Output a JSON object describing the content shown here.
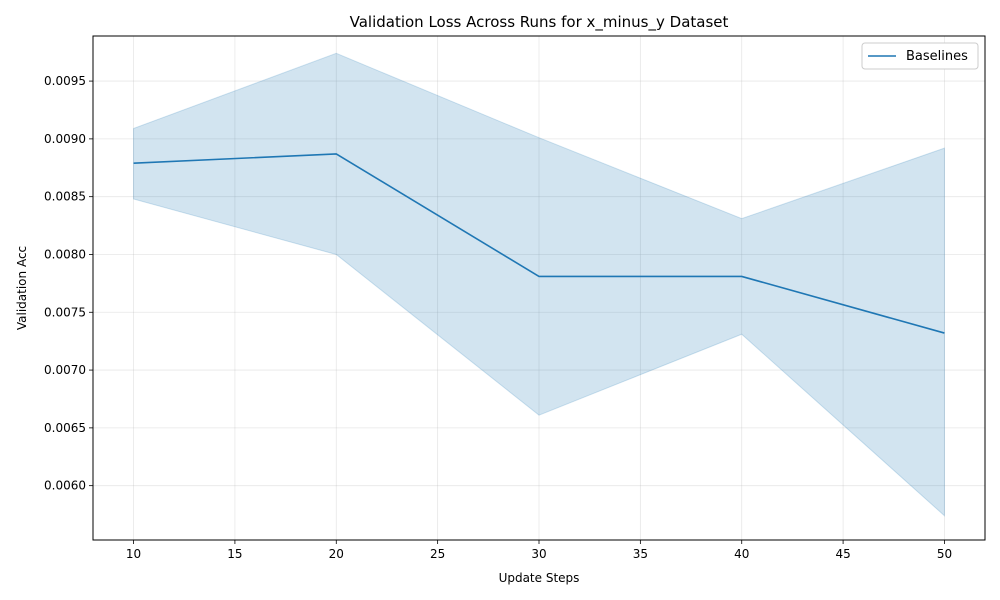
{
  "chart_data": {
    "type": "line",
    "title": "Validation Loss Across Runs for x_minus_y Dataset",
    "xlabel": "Update Steps",
    "ylabel": "Validation Acc",
    "x": [
      10,
      20,
      30,
      40,
      50
    ],
    "xlim": [
      8,
      52
    ],
    "ylim": [
      0.00553,
      0.00989
    ],
    "xticks": [
      "10",
      "15",
      "20",
      "25",
      "30",
      "35",
      "40",
      "45",
      "50"
    ],
    "yticks": [
      "0.0060",
      "0.0065",
      "0.0070",
      "0.0075",
      "0.0080",
      "0.0085",
      "0.0090",
      "0.0095"
    ],
    "grid": true,
    "legend_position": "top-right",
    "series": [
      {
        "name": "Baselines",
        "color": "#1f77b4",
        "values": [
          0.00879,
          0.00887,
          0.00781,
          0.00781,
          0.00732
        ],
        "upper": [
          0.00909,
          0.00974,
          0.00901,
          0.00831,
          0.00892
        ],
        "lower": [
          0.00848,
          0.008,
          0.00661,
          0.00731,
          0.00574
        ]
      }
    ]
  }
}
